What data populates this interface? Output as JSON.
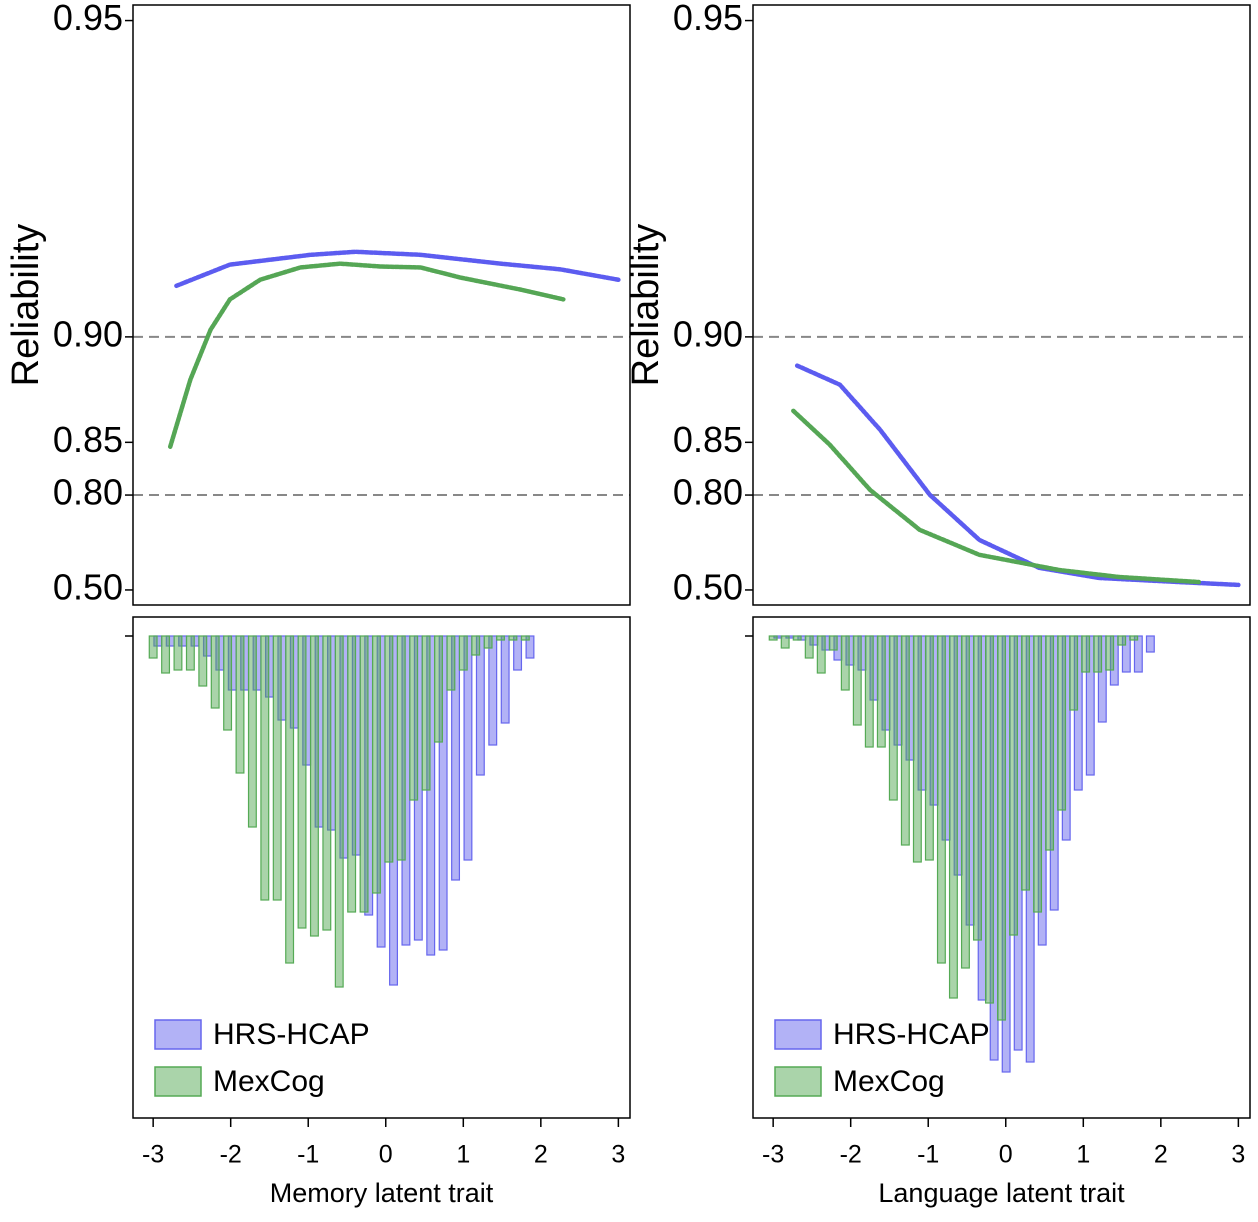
{
  "chart_data": [
    {
      "type": "line",
      "ylabel": "Reliability",
      "xlabel": "Memory latent trait",
      "xlim": [
        -3.26,
        3.15
      ],
      "xticks": [
        -3,
        -2,
        -1,
        0,
        1,
        2,
        3
      ],
      "ylim": [
        0.344,
        0.9512
      ],
      "yscale": "reciprocal",
      "yticks": [
        {
          "value": 0.5,
          "label": "0.50"
        },
        {
          "value": 0.8,
          "label": "0.80"
        },
        0.85,
        {
          "value": 0.9,
          "label": "0.90"
        },
        0.95
      ],
      "reference_lines": [
        0.8,
        0.9
      ],
      "series": [
        {
          "name": "HRS-HCAP",
          "color": "#5c5cf0",
          "x": [
            -2.7,
            -2.01,
            -0.97,
            -0.39,
            0.45,
            1.48,
            2.25,
            3.0
          ],
          "values": [
            0.9139,
            0.9186,
            0.9206,
            0.9212,
            0.9206,
            0.9188,
            0.9176,
            0.9153
          ]
        },
        {
          "name": "MexCog",
          "color": "#55a655",
          "x": [
            -2.78,
            -2.52,
            -2.26,
            -2.01,
            -1.62,
            -1.1,
            -0.59,
            -0.07,
            0.45,
            0.96,
            1.74,
            2.29
          ],
          "values": [
            0.8468,
            0.8844,
            0.9022,
            0.9106,
            0.9153,
            0.918,
            0.9188,
            0.9182,
            0.918,
            0.9158,
            0.913,
            0.9106
          ]
        }
      ],
      "histogram": {
        "type": "bar",
        "inverted": true,
        "ylim": [
          -19,
          482
        ],
        "yticks": [
          0
        ],
        "bar_width": 0.1,
        "legend": "lower left",
        "series": [
          {
            "name": "HRS-HCAP",
            "color": "#6666ee",
            "x": [
              -2.94,
              -2.78,
              -2.62,
              -2.46,
              -2.3,
              -2.14,
              -1.98,
              -1.82,
              -1.66,
              -1.5,
              -1.34,
              -1.18,
              -1.02,
              -0.86,
              -0.7,
              -0.54,
              -0.38,
              -0.22,
              -0.06,
              0.1,
              0.26,
              0.42,
              0.58,
              0.74,
              0.9,
              1.06,
              1.22,
              1.38,
              1.54,
              1.7,
              1.86
            ],
            "values": [
              10,
              10,
              10,
              10,
              20,
              34,
              54,
              54,
              54,
              61,
              84,
              92,
              129,
              191,
              194,
              222,
              219,
              279,
              311,
              349,
              309,
              304,
              319,
              314,
              244,
              224,
              139,
              109,
              87,
              34,
              22
            ]
          },
          {
            "name": "MexCog",
            "color": "#55aa55",
            "x": [
              -3.0,
              -2.84,
              -2.68,
              -2.52,
              -2.36,
              -2.2,
              -2.04,
              -1.88,
              -1.72,
              -1.56,
              -1.4,
              -1.24,
              -1.08,
              -0.92,
              -0.76,
              -0.6,
              -0.44,
              -0.28,
              -0.12,
              0.04,
              0.2,
              0.36,
              0.52,
              0.68,
              0.84,
              1.0,
              1.16,
              1.32,
              1.48,
              1.64,
              1.8
            ],
            "values": [
              22,
              37,
              34,
              34,
              50,
              72,
              94,
              137,
              191,
              264,
              264,
              327,
              292,
              300,
              294,
              351,
              276,
              276,
              257,
              226,
              224,
              164,
              154,
              106,
              54,
              34,
              19,
              12,
              4,
              4,
              4
            ]
          }
        ]
      }
    },
    {
      "type": "line",
      "ylabel": "Reliability",
      "xlabel": "Language latent trait",
      "xlim": [
        -3.26,
        3.15
      ],
      "xticks": [
        -3,
        -2,
        -1,
        0,
        1,
        2,
        3
      ],
      "ylim": [
        0.344,
        0.9512
      ],
      "yscale": "reciprocal",
      "yticks": [
        {
          "value": 0.5,
          "label": "0.50"
        },
        {
          "value": 0.8,
          "label": "0.80"
        },
        0.85,
        {
          "value": 0.9,
          "label": "0.90"
        },
        0.95
      ],
      "reference_lines": [
        0.8,
        0.9
      ],
      "series": [
        {
          "name": "HRS-HCAP",
          "color": "#5c5cf0",
          "x": [
            -2.69,
            -2.14,
            -1.62,
            -0.98,
            -0.34,
            0.43,
            1.2,
            2.23,
            3.0
          ],
          "values": [
            0.89,
            0.8822,
            0.8584,
            0.8004,
            0.7207,
            0.6296,
            0.5798,
            0.5556,
            0.537
          ]
        },
        {
          "name": "MexCog",
          "color": "#55a655",
          "x": [
            -2.74,
            -2.27,
            -1.75,
            -1.11,
            -0.34,
            0.69,
            1.46,
            2.49
          ],
          "values": [
            0.8695,
            0.8483,
            0.8063,
            0.7436,
            0.6785,
            0.6198,
            0.5851,
            0.5556
          ]
        }
      ],
      "histogram": {
        "type": "bar",
        "inverted": true,
        "ylim": [
          -19,
          482
        ],
        "yticks": [
          0
        ],
        "bar_width": 0.1,
        "legend": "lower left",
        "series": [
          {
            "name": "HRS-HCAP",
            "color": "#6666ee",
            "x": [
              -2.94,
              -2.785,
              -2.63,
              -2.475,
              -2.32,
              -2.165,
              -2.01,
              -1.855,
              -1.7,
              -1.545,
              -1.39,
              -1.235,
              -1.08,
              -0.925,
              -0.77,
              -0.615,
              -0.46,
              -0.305,
              -0.15,
              0.005,
              0.16,
              0.315,
              0.47,
              0.625,
              0.78,
              0.935,
              1.09,
              1.245,
              1.4,
              1.555,
              1.71,
              1.865
            ],
            "values": [
              2,
              2,
              4,
              9,
              14,
              24,
              29,
              34,
              64,
              94,
              109,
              124,
              154,
              169,
              204,
              239,
              289,
              364,
              424,
              436,
              414,
              426,
              309,
              274,
              204,
              154,
              139,
              86,
              49,
              36,
              36,
              16
            ]
          },
          {
            "name": "MexCog",
            "color": "#55aa55",
            "x": [
              -3.0,
              -2.845,
              -2.69,
              -2.535,
              -2.38,
              -2.225,
              -2.07,
              -1.915,
              -1.76,
              -1.605,
              -1.45,
              -1.295,
              -1.14,
              -0.985,
              -0.83,
              -0.675,
              -0.52,
              -0.365,
              -0.21,
              -0.055,
              0.1,
              0.255,
              0.41,
              0.565,
              0.72,
              0.875,
              1.03,
              1.185,
              1.34,
              1.495,
              1.65,
              1.805
            ],
            "values": [
              4,
              12,
              4,
              22,
              37,
              14,
              54,
              89,
              111,
              111,
              164,
              209,
              226,
              224,
              327,
              362,
              332,
              304,
              367,
              384,
              299,
              254,
              276,
              214,
              174,
              74,
              36,
              36,
              34,
              9,
              4,
              0
            ]
          }
        ]
      }
    }
  ]
}
